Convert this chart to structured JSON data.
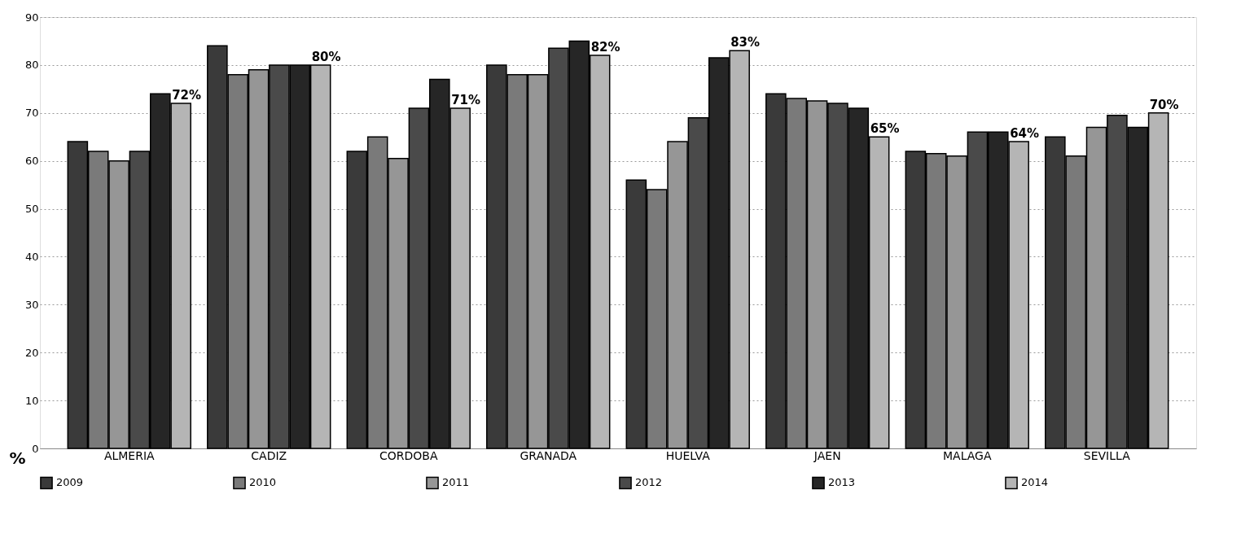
{
  "chart_data": {
    "type": "bar",
    "ylabel": "%",
    "categories": [
      "ALMERIA",
      "CADIZ",
      "CORDOBA",
      "GRANADA",
      "HUELVA",
      "JAEN",
      "MALAGA",
      "SEVILLA"
    ],
    "series": [
      {
        "name": "2009",
        "color": "#3a3a3a",
        "values": [
          64,
          84,
          62,
          80,
          56,
          74,
          62,
          65
        ]
      },
      {
        "name": "2010",
        "color": "#7a7a7a",
        "values": [
          62,
          78,
          65,
          78,
          54,
          73,
          61.5,
          61
        ]
      },
      {
        "name": "2011",
        "color": "#969696",
        "values": [
          60,
          79,
          60.5,
          78,
          64,
          72.5,
          61,
          67
        ]
      },
      {
        "name": "2012",
        "color": "#4a4a4a",
        "values": [
          62,
          80,
          71,
          83.5,
          69,
          72,
          66,
          69.5
        ]
      },
      {
        "name": "2013",
        "color": "#262626",
        "values": [
          74,
          80,
          77,
          85,
          81.5,
          71,
          66,
          67
        ]
      },
      {
        "name": "2014",
        "color": "#b5b5b5",
        "values": [
          72,
          80,
          71,
          82,
          83,
          65,
          64,
          70
        ],
        "value_labels": [
          "72%",
          "80%",
          "71%",
          "82%",
          "83%",
          "65%",
          "64%",
          "70%"
        ]
      }
    ],
    "ylim": [
      0,
      90
    ],
    "yticks": [
      0,
      10,
      20,
      30,
      40,
      50,
      60,
      70,
      80,
      90
    ],
    "grid": "y",
    "legend": "bottom"
  }
}
